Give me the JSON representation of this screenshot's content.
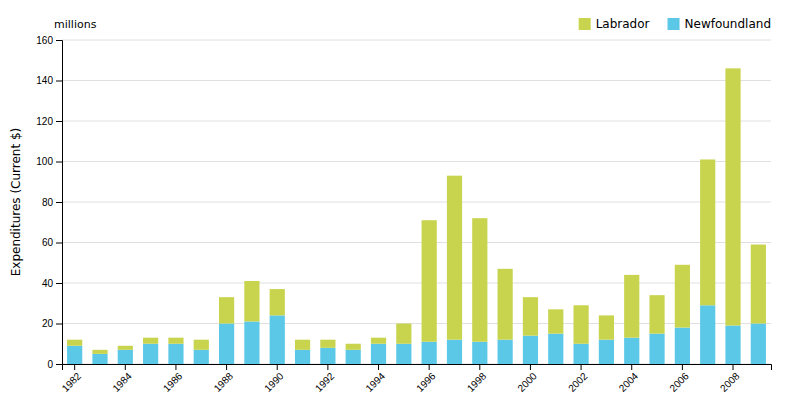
{
  "chart_data": {
    "type": "bar",
    "stacked": true,
    "categories": [
      "1982",
      null,
      "1984",
      null,
      "1986",
      null,
      "1988",
      null,
      "1990",
      null,
      "1992",
      null,
      "1994",
      null,
      "1996",
      null,
      "1998",
      null,
      "2000",
      null,
      "2002",
      null,
      "2004",
      null,
      "2006",
      null,
      "2008",
      null
    ],
    "series": [
      {
        "name": "Newfoundland",
        "color": "#5bc8e8",
        "values": [
          9,
          5,
          7,
          10,
          10,
          7,
          20,
          21,
          24,
          7,
          8,
          7,
          10,
          10,
          11,
          12,
          11,
          12,
          14,
          15,
          10,
          12,
          13,
          15,
          18,
          29,
          19,
          20
        ]
      },
      {
        "name": "Labrador",
        "color": "#c8d44e",
        "values": [
          3,
          2,
          2,
          3,
          3,
          5,
          13,
          20,
          13,
          5,
          4,
          3,
          3,
          10,
          60,
          81,
          61,
          35,
          19,
          12,
          19,
          12,
          31,
          19,
          31,
          72,
          127,
          39
        ]
      }
    ],
    "y_label": "Expenditures (Current $)",
    "annotations": [
      "millions"
    ],
    "ylim": [
      0,
      160
    ],
    "yticks": [
      0,
      20,
      40,
      60,
      80,
      100,
      120,
      140,
      160
    ],
    "grid": true,
    "legend": "upper right"
  }
}
